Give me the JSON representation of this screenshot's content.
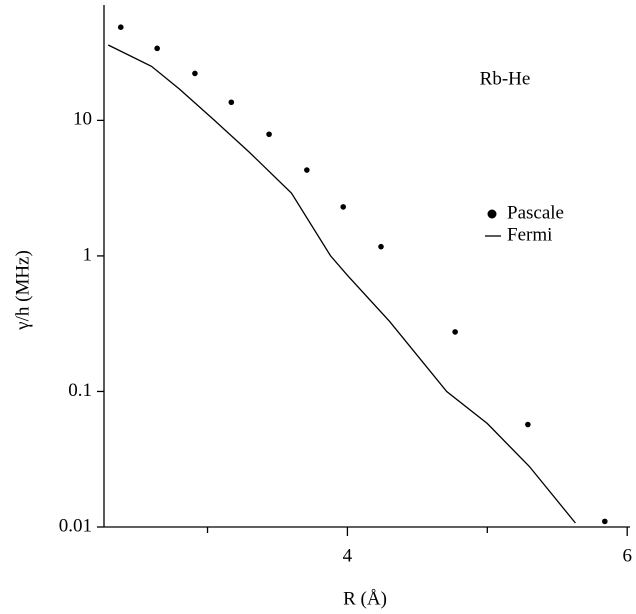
{
  "chart_data": {
    "type": "scatter",
    "annotation": "Rb-He",
    "x_label": "R (Å)",
    "y_label": "γ/h (MHz)",
    "xlim": [
      2.26,
      6.02
    ],
    "xticks": [
      4,
      6
    ],
    "xminorticks": [
      3,
      5
    ],
    "ylim": [
      0.01,
      71
    ],
    "yscale": "log",
    "yticks": [
      {
        "value": 10,
        "label": "10"
      },
      {
        "value": 1,
        "label": "1"
      },
      {
        "value": 0.1,
        "label": "0.1"
      },
      {
        "value": 0.01,
        "label": "0.01"
      }
    ],
    "legend": "right",
    "series": [
      {
        "name": "Pascale",
        "style": "markers",
        "color": "#000000",
        "x": [
          2.38,
          2.64,
          2.91,
          3.17,
          3.44,
          3.71,
          3.97,
          4.24,
          4.77,
          5.29,
          5.84
        ],
        "values": [
          48.7,
          34,
          22.2,
          13.6,
          7.9,
          4.3,
          2.3,
          1.17,
          0.275,
          0.057,
          0.011
        ]
      },
      {
        "name": "Fermi",
        "style": "line",
        "color": "#000000",
        "x": [
          2.29,
          2.6,
          2.8,
          3.05,
          3.3,
          3.6,
          3.88,
          4.0,
          4.3,
          4.71,
          5.0,
          5.3,
          5.63
        ],
        "values": [
          36,
          25,
          17,
          10,
          5.8,
          2.9,
          1.0,
          0.72,
          0.33,
          0.1,
          0.058,
          0.028,
          0.0107
        ]
      }
    ]
  }
}
